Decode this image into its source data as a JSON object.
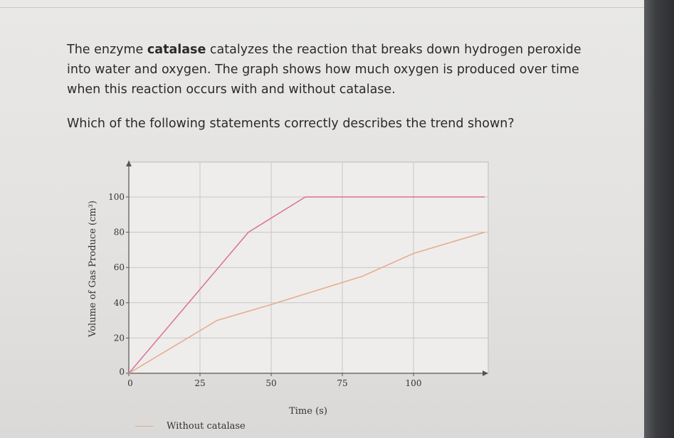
{
  "question": {
    "intro_before": "The enzyme ",
    "intro_bold": "catalase",
    "intro_after": " catalyzes the reaction that breaks down hydrogen peroxide into water and oxygen. The graph shows how much oxygen is produced over time when this reaction occurs with and without catalase.",
    "prompt": "Which of the following statements correctly describes the trend shown?"
  },
  "chart_data": {
    "type": "line",
    "xlabel": "Time (s)",
    "ylabel": "Volume of Gas Produce (cm³)",
    "xlim": [
      0,
      125
    ],
    "ylim": [
      0,
      100
    ],
    "x_ticks": [
      0,
      25,
      50,
      75,
      100
    ],
    "y_ticks": [
      0,
      20,
      40,
      60,
      80,
      100
    ],
    "grid": true,
    "legend_position": "bottom-left",
    "series": [
      {
        "color": "#d96f9e",
        "x": [
          0,
          42,
          62,
          125
        ],
        "y": [
          0,
          80,
          100,
          100
        ]
      },
      {
        "name": "Without catalase",
        "color": "#e6a98a",
        "x": [
          0,
          31,
          50,
          82,
          100,
          125
        ],
        "y": [
          0,
          30,
          39,
          55,
          68,
          80
        ]
      }
    ]
  }
}
